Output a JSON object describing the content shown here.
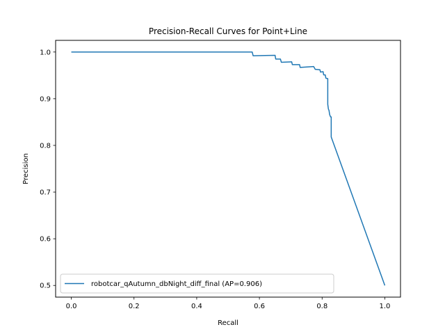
{
  "chart_data": {
    "type": "line",
    "title": "Precision-Recall Curves for Point+Line",
    "xlabel": "Recall",
    "ylabel": "Precision",
    "xlim": [
      -0.05,
      1.05
    ],
    "ylim": [
      0.475,
      1.025
    ],
    "xticks": [
      0.0,
      0.2,
      0.4,
      0.6,
      0.8,
      1.0
    ],
    "xtick_labels": [
      "0.0",
      "0.2",
      "0.4",
      "0.6",
      "0.8",
      "1.0"
    ],
    "yticks": [
      0.5,
      0.6,
      0.7,
      0.8,
      0.9,
      1.0
    ],
    "ytick_labels": [
      "0.5",
      "0.6",
      "0.7",
      "0.8",
      "0.9",
      "1.0"
    ],
    "grid": false,
    "legend_position": "lower-left",
    "series": [
      {
        "name": "robotcar_qAutumn_dbNight_diff_final (AP=0.906)",
        "color": "#1f77b4",
        "points": [
          [
            0.0,
            1.0
          ],
          [
            0.577,
            1.0
          ],
          [
            0.58,
            0.992
          ],
          [
            0.65,
            0.993
          ],
          [
            0.652,
            0.985
          ],
          [
            0.667,
            0.985
          ],
          [
            0.67,
            0.978
          ],
          [
            0.703,
            0.979
          ],
          [
            0.705,
            0.973
          ],
          [
            0.728,
            0.973
          ],
          [
            0.73,
            0.967
          ],
          [
            0.773,
            0.969
          ],
          [
            0.778,
            0.963
          ],
          [
            0.793,
            0.962
          ],
          [
            0.795,
            0.957
          ],
          [
            0.803,
            0.958
          ],
          [
            0.805,
            0.951
          ],
          [
            0.81,
            0.951
          ],
          [
            0.812,
            0.944
          ],
          [
            0.818,
            0.943
          ],
          [
            0.818,
            0.888
          ],
          [
            0.82,
            0.878
          ],
          [
            0.822,
            0.875
          ],
          [
            0.824,
            0.866
          ],
          [
            0.827,
            0.861
          ],
          [
            0.829,
            0.861
          ],
          [
            0.829,
            0.818
          ],
          [
            1.0,
            0.5
          ]
        ]
      }
    ]
  }
}
